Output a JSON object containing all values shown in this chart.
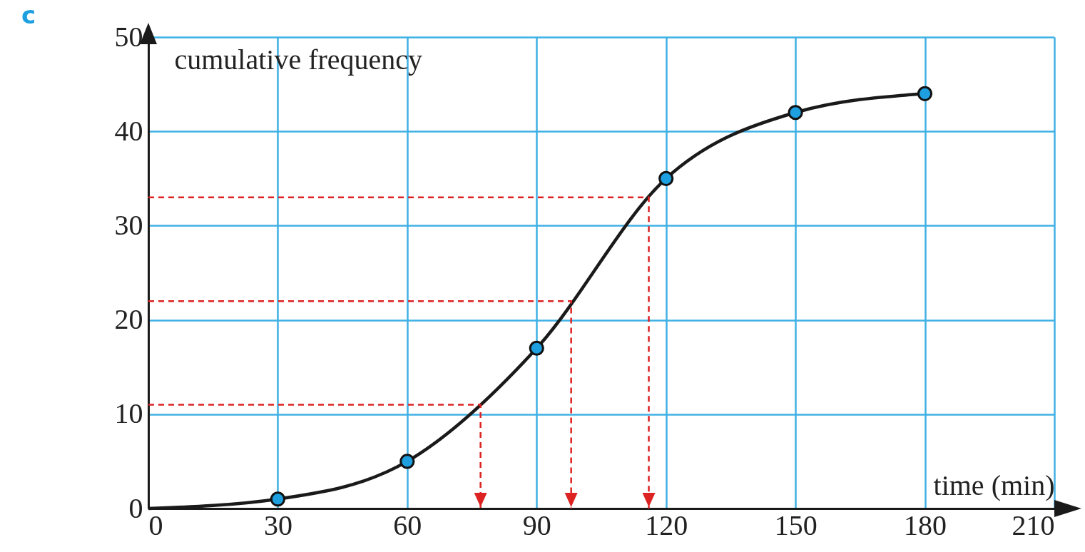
{
  "chart_data": {
    "type": "line",
    "title": "c",
    "xlabel": "time (min)",
    "ylabel": "cumulative frequency",
    "xlim": [
      0,
      210
    ],
    "xticks": [
      0,
      30,
      60,
      90,
      120,
      150,
      180,
      210
    ],
    "ylim": [
      0,
      50
    ],
    "yticks": [
      0,
      10,
      20,
      30,
      40,
      50
    ],
    "grid": true,
    "series": [
      {
        "type": "line",
        "color": "#1a1a1a",
        "x": [
          0,
          30,
          60,
          90,
          120,
          150,
          180
        ],
        "values": [
          0,
          1,
          5,
          17,
          35,
          42,
          44
        ]
      },
      {
        "type": "scatter",
        "color": "#1ea0e0",
        "marker": "circle",
        "x": [
          30,
          60,
          90,
          120,
          150,
          180
        ],
        "values": [
          1,
          5,
          17,
          35,
          42,
          44
        ]
      },
      {
        "type": "line",
        "color": "#dd2222",
        "line_style": "dashed",
        "x": [
          0,
          77,
          77
        ],
        "values": [
          11,
          11,
          0
        ]
      },
      {
        "type": "line",
        "color": "#dd2222",
        "line_style": "dashed",
        "x": [
          0,
          98,
          98
        ],
        "values": [
          22,
          22,
          0
        ]
      },
      {
        "type": "line",
        "color": "#dd2222",
        "line_style": "dashed",
        "x": [
          0,
          116,
          116
        ],
        "values": [
          33,
          33,
          0
        ]
      }
    ]
  }
}
